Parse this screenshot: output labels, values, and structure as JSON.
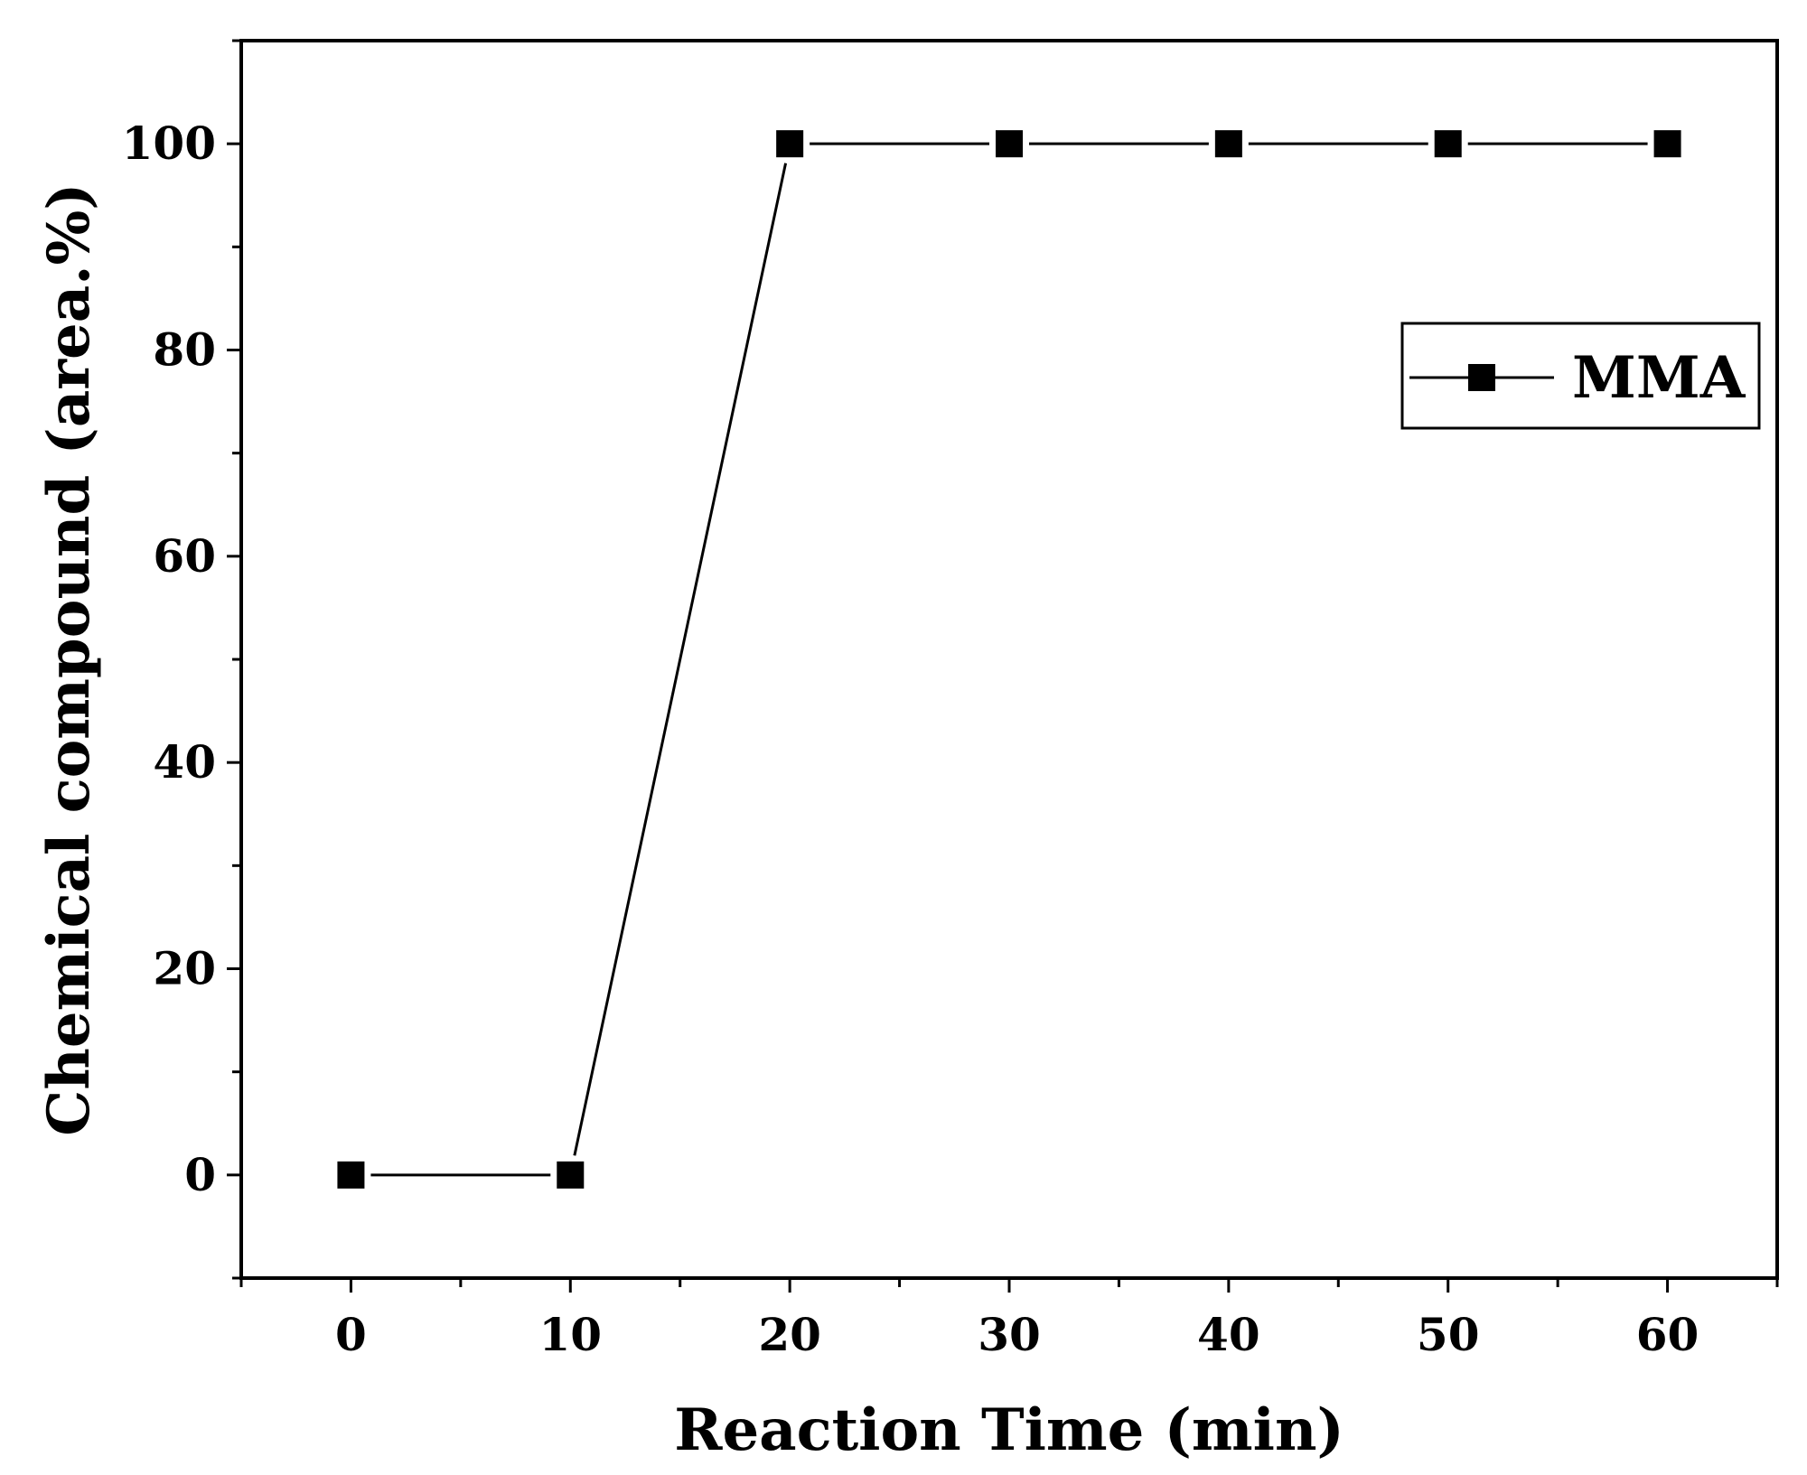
{
  "chart_data": {
    "type": "line",
    "xlabel": "Reaction Time (min)",
    "ylabel": "Chemical compound (area.%)",
    "xlim": [
      -5,
      65
    ],
    "ylim": [
      -10,
      110
    ],
    "xticks": [
      0,
      10,
      20,
      30,
      40,
      50,
      60
    ],
    "yticks": [
      0,
      20,
      40,
      60,
      80,
      100
    ],
    "x_minor_step": 5,
    "y_minor_step": 10,
    "grid": false,
    "legend_position": "top-right",
    "series": [
      {
        "name": "MMA",
        "marker": "square",
        "color": "#000000",
        "x": [
          0,
          10,
          20,
          30,
          40,
          50,
          60
        ],
        "y": [
          0,
          0,
          100,
          100,
          100,
          100,
          100
        ]
      }
    ]
  }
}
